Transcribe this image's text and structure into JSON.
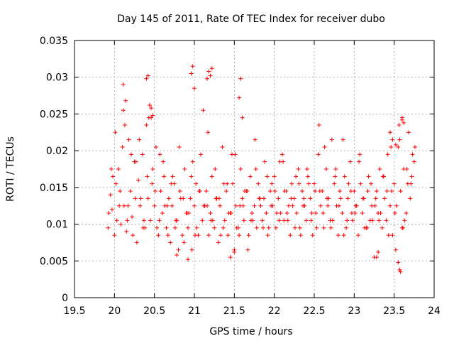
{
  "chart_data": {
    "type": "scatter",
    "title": "Day 145 of 2011, Rate Of TEC Index for receiver dubo",
    "xlabel": "GPS time / hours",
    "ylabel": "ROTI / TECUs",
    "xlim": [
      19.5,
      24
    ],
    "ylim": [
      0,
      0.035
    ],
    "xticks": [
      19.5,
      20,
      20.5,
      21,
      21.5,
      22,
      22.5,
      23,
      23.5,
      24
    ],
    "xtick_labels": [
      "19.5",
      "20",
      "20.5",
      "21",
      "21.5",
      "22",
      "22.5",
      "23",
      "23.5",
      "24"
    ],
    "yticks": [
      0,
      0.005,
      0.01,
      0.015,
      0.02,
      0.025,
      0.03,
      0.035
    ],
    "ytick_labels": [
      "0",
      "0.005",
      "0.01",
      "0.015",
      "0.02",
      "0.025",
      "0.03",
      "0.035"
    ],
    "grid": true,
    "marker": "plus",
    "color": "#ff0000",
    "series": [
      {
        "x": [
          19.92,
          19.95,
          19.97,
          20.0,
          20.02,
          20.05,
          20.08,
          20.1,
          20.12,
          20.15,
          20.18,
          20.2,
          20.22,
          20.25,
          20.28,
          20.3,
          20.32,
          20.35,
          20.38,
          20.4,
          20.42,
          20.45,
          20.48,
          20.5,
          20.52,
          20.55,
          20.58,
          20.6,
          20.62,
          20.65,
          20.68,
          20.7,
          20.72,
          20.75,
          20.78,
          20.8,
          20.82,
          20.85,
          20.88,
          20.9,
          20.92,
          20.95,
          20.97,
          21.0,
          21.02,
          21.05,
          21.08,
          21.1,
          21.12,
          21.15,
          21.18,
          21.2,
          21.22,
          21.25,
          21.28,
          21.3,
          21.32,
          21.35,
          21.38,
          21.4,
          21.42,
          21.45,
          21.48,
          21.5,
          21.52,
          21.55,
          21.58,
          21.6,
          21.62,
          21.65,
          21.68,
          21.7,
          21.72,
          21.75,
          21.78,
          21.8,
          21.82,
          21.85,
          21.88,
          21.9,
          21.92,
          21.95,
          21.98,
          22.0,
          22.02,
          22.05,
          22.08,
          22.1,
          22.12,
          22.15,
          22.18,
          22.2,
          22.22,
          22.25,
          22.28,
          22.3,
          22.32,
          22.35,
          22.38,
          22.4,
          22.42,
          22.45,
          22.48,
          22.5,
          22.52,
          22.55,
          22.58,
          22.6,
          22.62,
          22.65,
          22.68,
          22.7,
          22.72,
          22.75,
          22.78,
          22.8,
          22.82,
          22.85,
          22.88,
          22.9,
          22.92,
          22.95,
          22.98,
          23.0,
          23.02,
          23.05,
          23.08,
          23.1,
          23.12,
          23.15,
          23.18,
          23.2,
          23.22,
          23.25,
          23.28,
          23.3,
          23.32,
          23.35,
          23.38,
          23.4,
          23.42,
          23.45,
          23.48,
          23.5,
          23.52,
          23.55,
          23.58,
          23.6,
          23.62,
          23.65,
          23.68,
          23.7,
          23.72,
          23.75,
          19.93,
          19.98,
          20.03,
          20.07,
          20.13,
          20.17,
          20.23,
          20.27,
          20.33,
          20.37,
          20.43,
          20.47,
          20.53,
          20.57,
          20.63,
          20.67,
          20.73,
          20.77,
          20.83,
          20.87,
          20.93,
          20.98,
          21.03,
          21.07,
          21.13,
          21.17,
          21.23,
          21.27,
          21.33,
          21.37,
          21.43,
          21.47,
          21.53,
          21.57,
          21.63,
          21.67,
          21.73,
          21.77,
          21.83,
          21.87,
          21.93,
          21.97,
          22.03,
          22.07,
          22.13,
          22.17,
          22.23,
          22.27,
          22.33,
          22.37,
          22.43,
          22.47,
          22.53,
          22.57,
          22.63,
          22.67,
          22.73,
          22.77,
          22.83,
          22.87,
          22.93,
          22.97,
          23.03,
          23.07,
          23.13,
          23.17,
          23.23,
          23.27,
          23.33,
          23.37,
          23.43,
          23.47,
          23.53,
          23.57,
          23.63,
          23.67,
          23.73,
          19.96,
          20.01,
          20.06,
          20.11,
          20.16,
          20.21,
          20.26,
          20.31,
          20.36,
          20.41,
          20.46,
          20.51,
          20.56,
          20.61,
          20.66,
          20.71,
          20.76,
          20.81,
          20.86,
          20.91,
          20.96,
          21.01,
          21.06,
          21.11,
          21.16,
          21.21,
          21.26,
          21.31,
          21.36,
          21.41,
          21.46,
          21.51,
          21.56,
          21.61,
          21.66,
          21.71,
          21.76,
          21.81,
          21.86,
          21.91,
          21.96,
          22.01,
          22.06,
          22.11,
          22.16,
          22.21,
          22.26,
          22.31,
          22.36,
          22.41,
          22.46,
          22.51,
          22.56,
          22.61,
          22.66,
          22.71,
          22.76,
          22.81,
          22.86,
          22.91,
          22.96,
          23.01,
          23.06,
          23.11,
          23.16,
          23.21,
          23.26,
          23.31,
          23.36,
          23.41,
          23.46,
          23.51,
          23.56,
          23.61,
          23.66,
          23.71,
          23.76,
          20.44,
          20.46,
          20.48,
          20.96,
          20.98,
          21.0,
          21.16,
          21.18,
          21.2,
          21.22,
          21.56,
          21.58,
          21.6,
          20.11,
          20.14,
          20.4,
          20.42,
          23.55,
          23.57,
          23.6,
          23.62,
          23.45,
          23.48,
          23.52,
          23.28,
          23.3,
          23.58,
          23.6,
          20.78,
          20.92,
          21.5,
          21.45
        ],
        "y": [
          0.0095,
          0.014,
          0.012,
          0.0085,
          0.0155,
          0.0175,
          0.01,
          0.0205,
          0.0125,
          0.009,
          0.0215,
          0.0145,
          0.011,
          0.0185,
          0.0075,
          0.016,
          0.0125,
          0.0195,
          0.0095,
          0.0235,
          0.0135,
          0.0105,
          0.0175,
          0.0125,
          0.0205,
          0.0085,
          0.0145,
          0.0115,
          0.0165,
          0.0095,
          0.0135,
          0.0075,
          0.0125,
          0.0155,
          0.0105,
          0.0065,
          0.0145,
          0.0085,
          0.0175,
          0.0115,
          0.0095,
          0.0135,
          0.0065,
          0.0125,
          0.0155,
          0.0085,
          0.0195,
          0.0105,
          0.0125,
          0.0145,
          0.0085,
          0.0115,
          0.0165,
          0.0095,
          0.0135,
          0.0075,
          0.0125,
          0.0205,
          0.0105,
          0.0145,
          0.0085,
          0.0115,
          0.0155,
          0.0065,
          0.0125,
          0.0095,
          0.0175,
          0.0135,
          0.0105,
          0.0145,
          0.0085,
          0.0165,
          0.0115,
          0.0125,
          0.0095,
          0.0155,
          0.0135,
          0.0105,
          0.0185,
          0.0115,
          0.0085,
          0.0145,
          0.0125,
          0.0165,
          0.0095,
          0.0135,
          0.0115,
          0.0195,
          0.0105,
          0.0145,
          0.0125,
          0.0085,
          0.0155,
          0.0135,
          0.0115,
          0.0175,
          0.0095,
          0.0145,
          0.0125,
          0.0105,
          0.0165,
          0.0135,
          0.0085,
          0.0155,
          0.0115,
          0.0195,
          0.0125,
          0.0145,
          0.0095,
          0.0175,
          0.0135,
          0.0105,
          0.0215,
          0.0155,
          0.0125,
          0.0085,
          0.0145,
          0.0115,
          0.0165,
          0.0095,
          0.0135,
          0.0185,
          0.0105,
          0.0145,
          0.0125,
          0.0085,
          0.0155,
          0.0115,
          0.0135,
          0.0095,
          0.0165,
          0.0105,
          0.0125,
          0.0055,
          0.0145,
          0.0115,
          0.0175,
          0.0095,
          0.0135,
          0.0105,
          0.0195,
          0.0125,
          0.0085,
          0.0155,
          0.0065,
          0.0205,
          0.0145,
          0.0095,
          0.0175,
          0.0115,
          0.0225,
          0.0135,
          0.0165,
          0.0185,
          0.0115,
          0.0165,
          0.0105,
          0.0145,
          0.0235,
          0.0125,
          0.0085,
          0.0185,
          0.0135,
          0.0105,
          0.0245,
          0.0155,
          0.0095,
          0.0195,
          0.0125,
          0.0085,
          0.0165,
          0.0105,
          0.0135,
          0.0075,
          0.0115,
          0.0185,
          0.0095,
          0.0145,
          0.0125,
          0.0225,
          0.0105,
          0.0135,
          0.0085,
          0.0155,
          0.0115,
          0.0195,
          0.0095,
          0.0125,
          0.0145,
          0.0065,
          0.0105,
          0.0175,
          0.0125,
          0.0135,
          0.0095,
          0.0155,
          0.0115,
          0.0185,
          0.0145,
          0.0105,
          0.0125,
          0.0165,
          0.0085,
          0.0135,
          0.0155,
          0.0115,
          0.0095,
          0.0145,
          0.0205,
          0.0125,
          0.0105,
          0.0175,
          0.0135,
          0.0085,
          0.0155,
          0.0115,
          0.0125,
          0.0195,
          0.0095,
          0.0145,
          0.0105,
          0.0135,
          0.0115,
          0.0165,
          0.0085,
          0.0145,
          0.0125,
          0.0215,
          0.0105,
          0.0155,
          0.0195,
          0.0175,
          0.0225,
          0.0125,
          0.0255,
          0.0105,
          0.0195,
          0.0135,
          0.0215,
          0.0095,
          0.0165,
          0.0245,
          0.0145,
          0.0105,
          0.0185,
          0.0125,
          0.0155,
          0.0095,
          0.0205,
          0.0135,
          0.0115,
          0.0165,
          0.0085,
          0.0145,
          0.0255,
          0.0125,
          0.0105,
          0.0175,
          0.0135,
          0.0095,
          0.0155,
          0.0115,
          0.0195,
          0.0085,
          0.0125,
          0.0145,
          0.0105,
          0.0215,
          0.0135,
          0.0095,
          0.0165,
          0.0125,
          0.0145,
          0.0105,
          0.0185,
          0.0115,
          0.0135,
          0.0095,
          0.0155,
          0.0125,
          0.0175,
          0.0105,
          0.0145,
          0.0235,
          0.0115,
          0.0135,
          0.0095,
          0.0165,
          0.0125,
          0.0215,
          0.0105,
          0.0145,
          0.0115,
          0.0185,
          0.0135,
          0.0095,
          0.0155,
          0.0125,
          0.0105,
          0.0165,
          0.0145,
          0.0205,
          0.0115,
          0.0235,
          0.0095,
          0.0175,
          0.0155,
          0.0205,
          0.0262,
          0.0258,
          0.0248,
          0.0305,
          0.0315,
          0.0285,
          0.0298,
          0.0308,
          0.0302,
          0.0312,
          0.0272,
          0.0298,
          0.0245,
          0.029,
          0.0268,
          0.0298,
          0.0302,
          0.0048,
          0.0038,
          0.0242,
          0.0238,
          0.0225,
          0.0215,
          0.0208,
          0.0055,
          0.0062,
          0.0035,
          0.0245,
          0.0058,
          0.0052,
          0.0062,
          0.0055
        ]
      }
    ]
  }
}
